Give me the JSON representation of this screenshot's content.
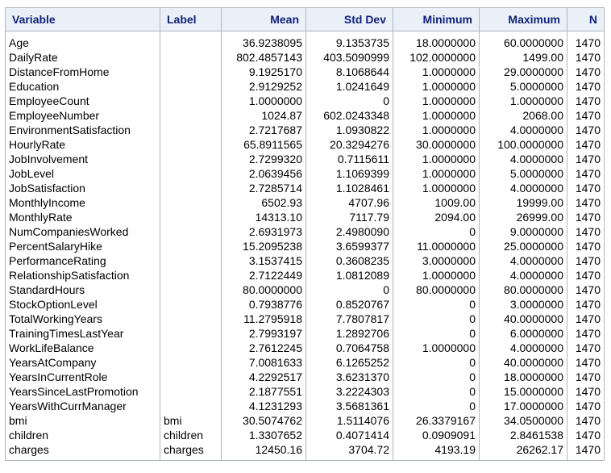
{
  "headers": [
    "Variable",
    "Label",
    "Mean",
    "Std Dev",
    "Minimum",
    "Maximum",
    "N"
  ],
  "rows": [
    [
      "Age",
      "",
      "36.9238095",
      "9.1353735",
      "18.0000000",
      "60.0000000",
      "1470"
    ],
    [
      "DailyRate",
      "",
      "802.4857143",
      "403.5090999",
      "102.0000000",
      "1499.00",
      "1470"
    ],
    [
      "DistanceFromHome",
      "",
      "9.1925170",
      "8.1068644",
      "1.0000000",
      "29.0000000",
      "1470"
    ],
    [
      "Education",
      "",
      "2.9129252",
      "1.0241649",
      "1.0000000",
      "5.0000000",
      "1470"
    ],
    [
      "EmployeeCount",
      "",
      "1.0000000",
      "0",
      "1.0000000",
      "1.0000000",
      "1470"
    ],
    [
      "EmployeeNumber",
      "",
      "1024.87",
      "602.0243348",
      "1.0000000",
      "2068.00",
      "1470"
    ],
    [
      "EnvironmentSatisfaction",
      "",
      "2.7217687",
      "1.0930822",
      "1.0000000",
      "4.0000000",
      "1470"
    ],
    [
      "HourlyRate",
      "",
      "65.8911565",
      "20.3294276",
      "30.0000000",
      "100.0000000",
      "1470"
    ],
    [
      "JobInvolvement",
      "",
      "2.7299320",
      "0.7115611",
      "1.0000000",
      "4.0000000",
      "1470"
    ],
    [
      "JobLevel",
      "",
      "2.0639456",
      "1.1069399",
      "1.0000000",
      "5.0000000",
      "1470"
    ],
    [
      "JobSatisfaction",
      "",
      "2.7285714",
      "1.1028461",
      "1.0000000",
      "4.0000000",
      "1470"
    ],
    [
      "MonthlyIncome",
      "",
      "6502.93",
      "4707.96",
      "1009.00",
      "19999.00",
      "1470"
    ],
    [
      "MonthlyRate",
      "",
      "14313.10",
      "7117.79",
      "2094.00",
      "26999.00",
      "1470"
    ],
    [
      "NumCompaniesWorked",
      "",
      "2.6931973",
      "2.4980090",
      "0",
      "9.0000000",
      "1470"
    ],
    [
      "PercentSalaryHike",
      "",
      "15.2095238",
      "3.6599377",
      "11.0000000",
      "25.0000000",
      "1470"
    ],
    [
      "PerformanceRating",
      "",
      "3.1537415",
      "0.3608235",
      "3.0000000",
      "4.0000000",
      "1470"
    ],
    [
      "RelationshipSatisfaction",
      "",
      "2.7122449",
      "1.0812089",
      "1.0000000",
      "4.0000000",
      "1470"
    ],
    [
      "StandardHours",
      "",
      "80.0000000",
      "0",
      "80.0000000",
      "80.0000000",
      "1470"
    ],
    [
      "StockOptionLevel",
      "",
      "0.7938776",
      "0.8520767",
      "0",
      "3.0000000",
      "1470"
    ],
    [
      "TotalWorkingYears",
      "",
      "11.2795918",
      "7.7807817",
      "0",
      "40.0000000",
      "1470"
    ],
    [
      "TrainingTimesLastYear",
      "",
      "2.7993197",
      "1.2892706",
      "0",
      "6.0000000",
      "1470"
    ],
    [
      "WorkLifeBalance",
      "",
      "2.7612245",
      "0.7064758",
      "1.0000000",
      "4.0000000",
      "1470"
    ],
    [
      "YearsAtCompany",
      "",
      "7.0081633",
      "6.1265252",
      "0",
      "40.0000000",
      "1470"
    ],
    [
      "YearsInCurrentRole",
      "",
      "4.2292517",
      "3.6231370",
      "0",
      "18.0000000",
      "1470"
    ],
    [
      "YearsSinceLastPromotion",
      "",
      "2.1877551",
      "3.2224303",
      "0",
      "15.0000000",
      "1470"
    ],
    [
      "YearsWithCurrManager",
      "",
      "4.1231293",
      "3.5681361",
      "0",
      "17.0000000",
      "1470"
    ],
    [
      "bmi",
      "bmi",
      "30.5074762",
      "1.5114076",
      "26.3379167",
      "34.0500000",
      "1470"
    ],
    [
      "children",
      "children",
      "1.3307652",
      "0.4071414",
      "0.0909091",
      "2.8461538",
      "1470"
    ],
    [
      "charges",
      "charges",
      "12450.16",
      "3704.72",
      "4193.19",
      "26262.17",
      "1470"
    ]
  ]
}
